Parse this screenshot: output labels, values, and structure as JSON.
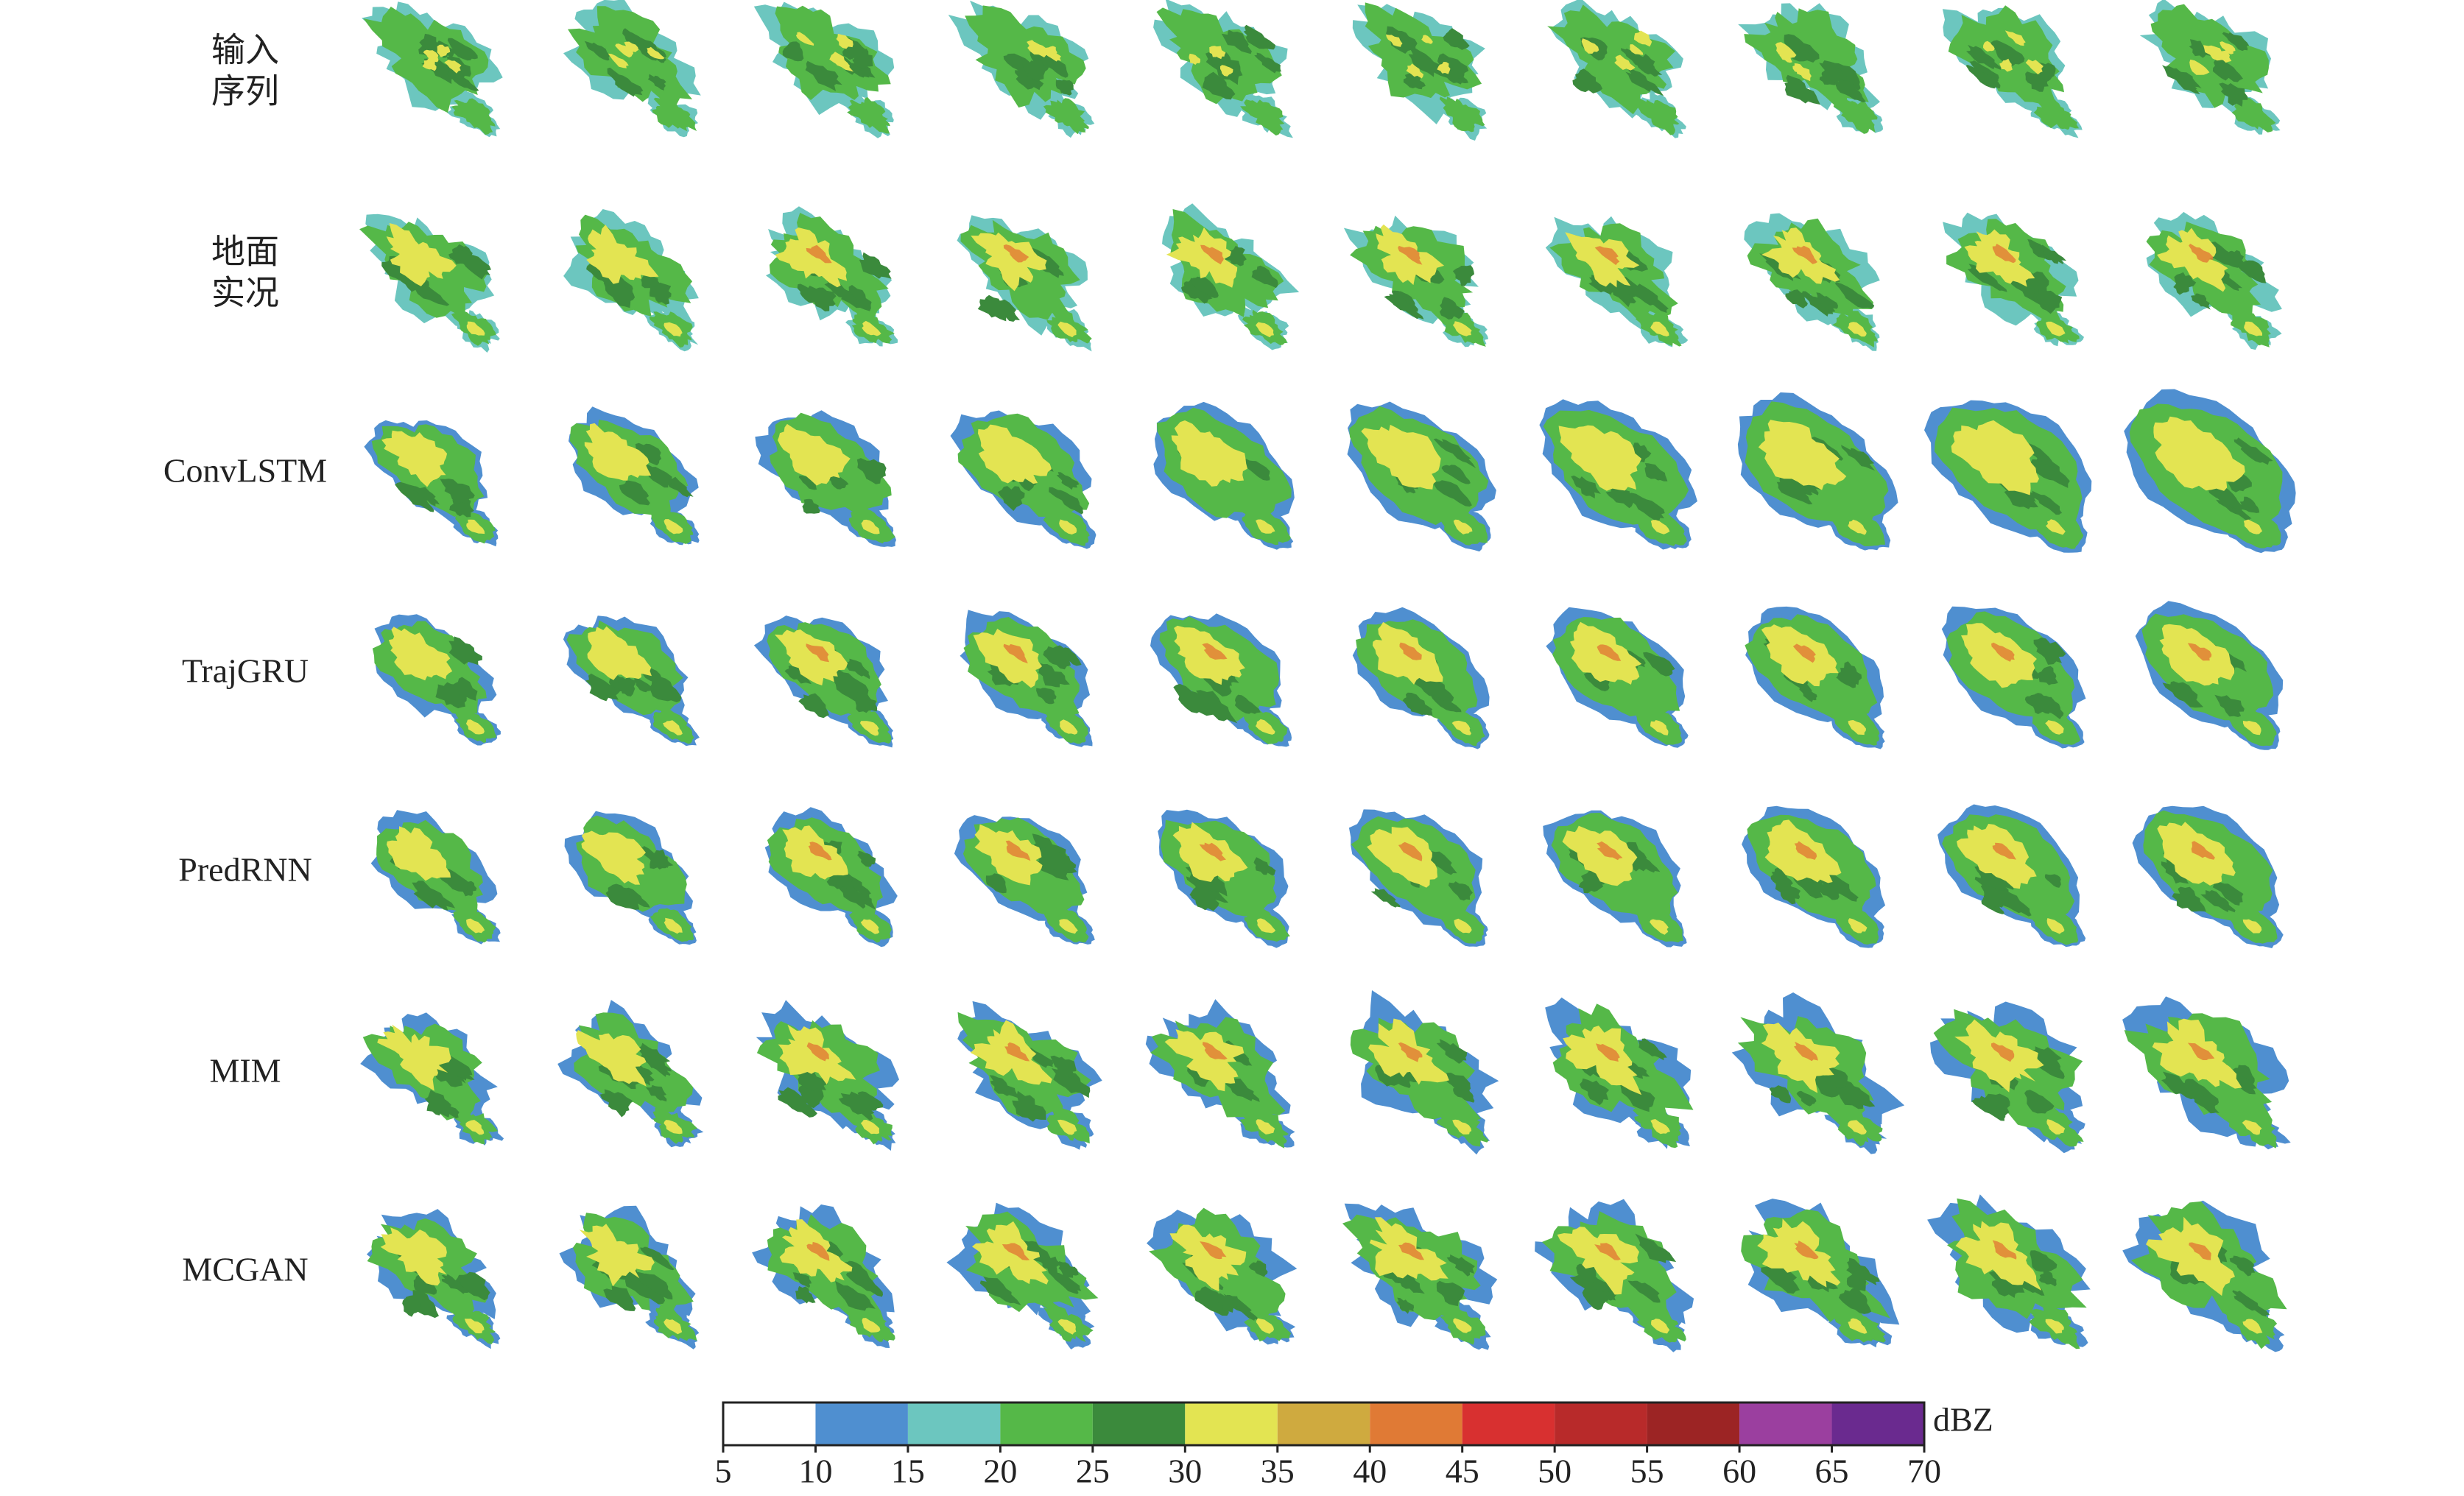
{
  "rows": [
    {
      "label": [
        "输入",
        "序列"
      ]
    },
    {
      "label": [
        "地面",
        "实况"
      ]
    },
    {
      "label": [
        "ConvLSTM"
      ]
    },
    {
      "label": [
        "TrajGRU"
      ]
    },
    {
      "label": [
        "PredRNN"
      ]
    },
    {
      "label": [
        "MIM"
      ]
    },
    {
      "label": [
        "MCGAN"
      ]
    }
  ],
  "colorbar": {
    "unit": "dBZ",
    "ticks": [
      5,
      10,
      15,
      20,
      25,
      30,
      35,
      40,
      45,
      50,
      55,
      60,
      65,
      70
    ],
    "colors": [
      "#ffffff",
      "#4f8fd0",
      "#6cc6bf",
      "#55b848",
      "#3b8a3c",
      "#e3e452",
      "#cfaa3f",
      "#e07a35",
      "#d83030",
      "#b82a2a",
      "#9c2424",
      "#9b3f9f",
      "#6a2a8f"
    ]
  }
}
